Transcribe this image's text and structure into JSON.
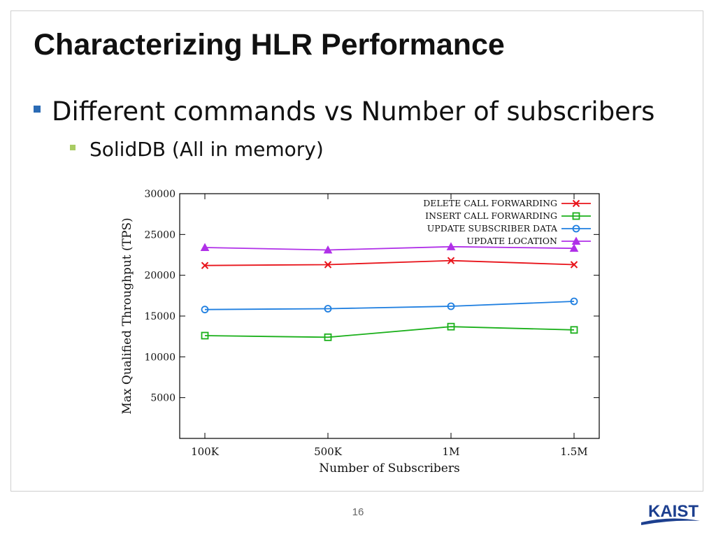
{
  "slide": {
    "title": "Characterizing HLR Performance",
    "bullet_1": "Different commands vs Number of subscribers",
    "bullet_2": "SolidDB (All in memory)",
    "page_number": "16",
    "logo_text": "KAIST"
  },
  "colors": {
    "bullet_1": "#2b6bb5",
    "bullet_2": "#a9cc63",
    "logo": "#1c3f8f"
  },
  "chart_data": {
    "type": "line",
    "title": "",
    "xlabel": "Number of Subscribers",
    "ylabel": "Max Qualified Throughput (TPS)",
    "categories": [
      "100K",
      "500K",
      "1M",
      "1.5M"
    ],
    "ylim": [
      0,
      30000
    ],
    "yticks": [
      5000,
      10000,
      15000,
      20000,
      25000,
      30000
    ],
    "legend_position": "top-right",
    "grid": false,
    "series": [
      {
        "name": "DELETE CALL FORWARDING",
        "values": [
          21200,
          21300,
          21800,
          21300
        ],
        "color": "#e8141b",
        "marker": "x"
      },
      {
        "name": "INSERT CALL FORWARDING",
        "values": [
          12600,
          12400,
          13700,
          13300
        ],
        "color": "#1bb01b",
        "marker": "square"
      },
      {
        "name": "UPDATE SUBSCRIBER DATA",
        "values": [
          15800,
          15900,
          16200,
          16800
        ],
        "color": "#1f7fe0",
        "marker": "circle"
      },
      {
        "name": "UPDATE LOCATION",
        "values": [
          23400,
          23100,
          23500,
          23300
        ],
        "color": "#b030e8",
        "marker": "triangle"
      }
    ]
  }
}
